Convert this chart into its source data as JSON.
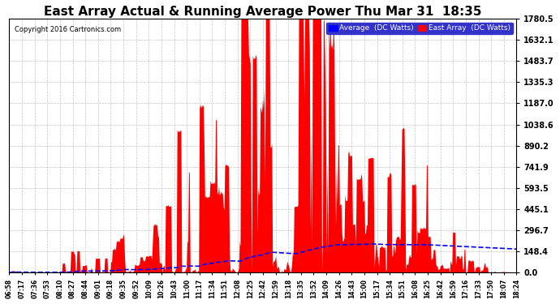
{
  "title": "East Array Actual & Running Average Power Thu Mar 31  18:35",
  "copyright": "Copyright 2016 Cartronics.com",
  "legend_labels": [
    "Average  (DC Watts)",
    "East Array  (DC Watts)"
  ],
  "legend_colors": [
    "#0000ff",
    "#ff0000"
  ],
  "yticks": [
    0.0,
    148.4,
    296.7,
    445.1,
    593.5,
    741.9,
    890.2,
    1038.6,
    1187.0,
    1335.3,
    1483.7,
    1632.1,
    1780.5
  ],
  "ymax": 1780.5,
  "ymin": 0.0,
  "background_color": "#ffffff",
  "plot_bg_color": "#ffffff",
  "grid_color": "#aaaaaa",
  "title_fontsize": 11,
  "xtick_labels": [
    "06:58",
    "07:17",
    "07:36",
    "07:53",
    "08:10",
    "08:27",
    "08:44",
    "09:01",
    "09:18",
    "09:35",
    "09:52",
    "10:09",
    "10:26",
    "10:43",
    "11:00",
    "11:17",
    "11:34",
    "11:51",
    "12:08",
    "12:25",
    "12:42",
    "12:59",
    "13:18",
    "13:35",
    "13:52",
    "14:09",
    "14:26",
    "14:43",
    "15:00",
    "15:17",
    "15:34",
    "15:51",
    "16:08",
    "16:25",
    "16:42",
    "16:59",
    "17:16",
    "17:33",
    "17:50",
    "18:07",
    "18:24"
  ],
  "num_points": 660,
  "line_color_avg": "#0000ff",
  "fill_color_east": "#ff0000",
  "line_color_east": "#cc0000"
}
